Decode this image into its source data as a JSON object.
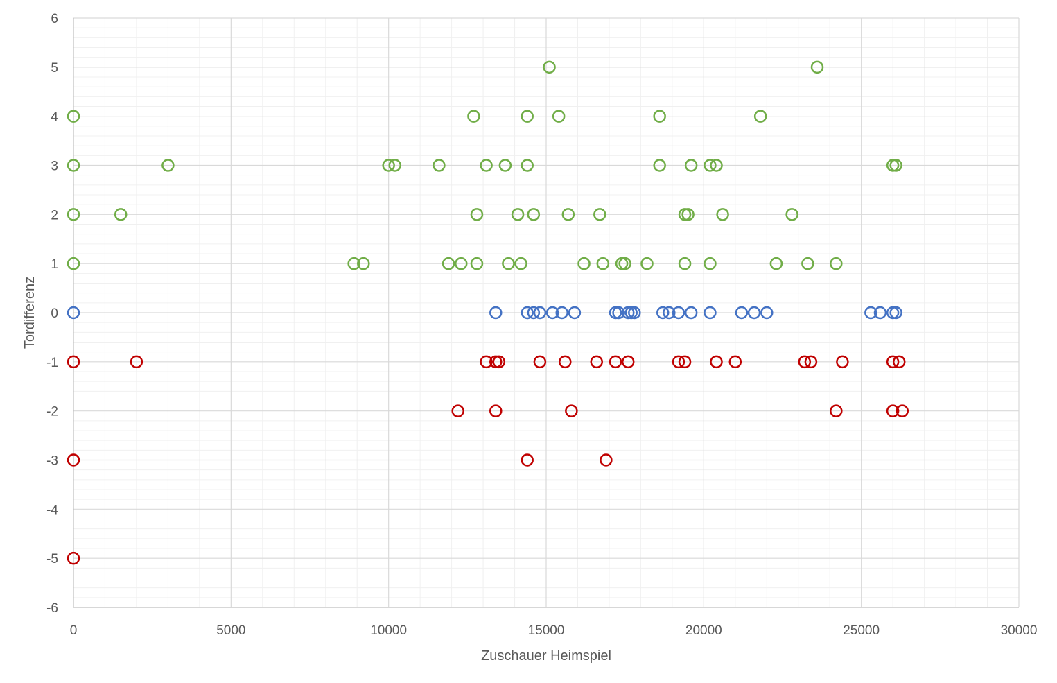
{
  "chart_data": {
    "type": "scatter",
    "title": "",
    "xlabel": "Zuschauer Heimspiel",
    "ylabel": "Tordifferenz",
    "xlim": [
      0,
      30000
    ],
    "ylim": [
      -6,
      6
    ],
    "x_ticks": [
      "0",
      "5000",
      "10000",
      "15000",
      "20000",
      "25000",
      "30000"
    ],
    "y_ticks": [
      "6",
      "5",
      "4",
      "3",
      "2",
      "1",
      "0",
      "-1",
      "-2",
      "-3",
      "-4",
      "-5",
      "-6"
    ],
    "grid": true,
    "legend": "none",
    "marker": "hollow-circle",
    "series": [
      {
        "color": "#70ad47",
        "points": [
          [
            15100,
            5
          ],
          [
            23600,
            5
          ],
          [
            0,
            4
          ],
          [
            12700,
            4
          ],
          [
            14400,
            4
          ],
          [
            15400,
            4
          ],
          [
            18600,
            4
          ],
          [
            21800,
            4
          ],
          [
            0,
            3
          ],
          [
            3000,
            3
          ],
          [
            10000,
            3
          ],
          [
            10200,
            3
          ],
          [
            11600,
            3
          ],
          [
            13100,
            3
          ],
          [
            13700,
            3
          ],
          [
            14400,
            3
          ],
          [
            18600,
            3
          ],
          [
            19600,
            3
          ],
          [
            20200,
            3
          ],
          [
            20400,
            3
          ],
          [
            26000,
            3
          ],
          [
            26100,
            3
          ],
          [
            0,
            2
          ],
          [
            1500,
            2
          ],
          [
            12800,
            2
          ],
          [
            14100,
            2
          ],
          [
            14600,
            2
          ],
          [
            15700,
            2
          ],
          [
            16700,
            2
          ],
          [
            19400,
            2
          ],
          [
            19500,
            2
          ],
          [
            20600,
            2
          ],
          [
            22800,
            2
          ],
          [
            0,
            1
          ],
          [
            8900,
            1
          ],
          [
            9200,
            1
          ],
          [
            11900,
            1
          ],
          [
            12300,
            1
          ],
          [
            12800,
            1
          ],
          [
            13800,
            1
          ],
          [
            14200,
            1
          ],
          [
            16200,
            1
          ],
          [
            16800,
            1
          ],
          [
            17400,
            1
          ],
          [
            17500,
            1
          ],
          [
            18200,
            1
          ],
          [
            19400,
            1
          ],
          [
            20200,
            1
          ],
          [
            22300,
            1
          ],
          [
            23300,
            1
          ],
          [
            24200,
            1
          ]
        ]
      },
      {
        "color": "#4472c4",
        "points": [
          [
            0,
            0
          ],
          [
            13400,
            0
          ],
          [
            14400,
            0
          ],
          [
            14600,
            0
          ],
          [
            14800,
            0
          ],
          [
            15200,
            0
          ],
          [
            15500,
            0
          ],
          [
            15900,
            0
          ],
          [
            17200,
            0
          ],
          [
            17300,
            0
          ],
          [
            17600,
            0
          ],
          [
            17700,
            0
          ],
          [
            17800,
            0
          ],
          [
            18700,
            0
          ],
          [
            18900,
            0
          ],
          [
            19200,
            0
          ],
          [
            19600,
            0
          ],
          [
            20200,
            0
          ],
          [
            21200,
            0
          ],
          [
            21600,
            0
          ],
          [
            22000,
            0
          ],
          [
            25300,
            0
          ],
          [
            25600,
            0
          ],
          [
            26000,
            0
          ],
          [
            26100,
            0
          ]
        ]
      },
      {
        "color": "#c00000",
        "points": [
          [
            0,
            -1
          ],
          [
            2000,
            -1
          ],
          [
            13100,
            -1
          ],
          [
            13400,
            -1
          ],
          [
            13500,
            -1
          ],
          [
            14800,
            -1
          ],
          [
            15600,
            -1
          ],
          [
            16600,
            -1
          ],
          [
            17200,
            -1
          ],
          [
            17600,
            -1
          ],
          [
            19200,
            -1
          ],
          [
            19400,
            -1
          ],
          [
            20400,
            -1
          ],
          [
            21000,
            -1
          ],
          [
            23200,
            -1
          ],
          [
            23400,
            -1
          ],
          [
            24400,
            -1
          ],
          [
            26000,
            -1
          ],
          [
            26200,
            -1
          ],
          [
            12200,
            -2
          ],
          [
            13400,
            -2
          ],
          [
            15800,
            -2
          ],
          [
            24200,
            -2
          ],
          [
            26000,
            -2
          ],
          [
            26300,
            -2
          ],
          [
            0,
            -3
          ],
          [
            14400,
            -3
          ],
          [
            16900,
            -3
          ],
          [
            0,
            -5
          ]
        ]
      }
    ]
  }
}
